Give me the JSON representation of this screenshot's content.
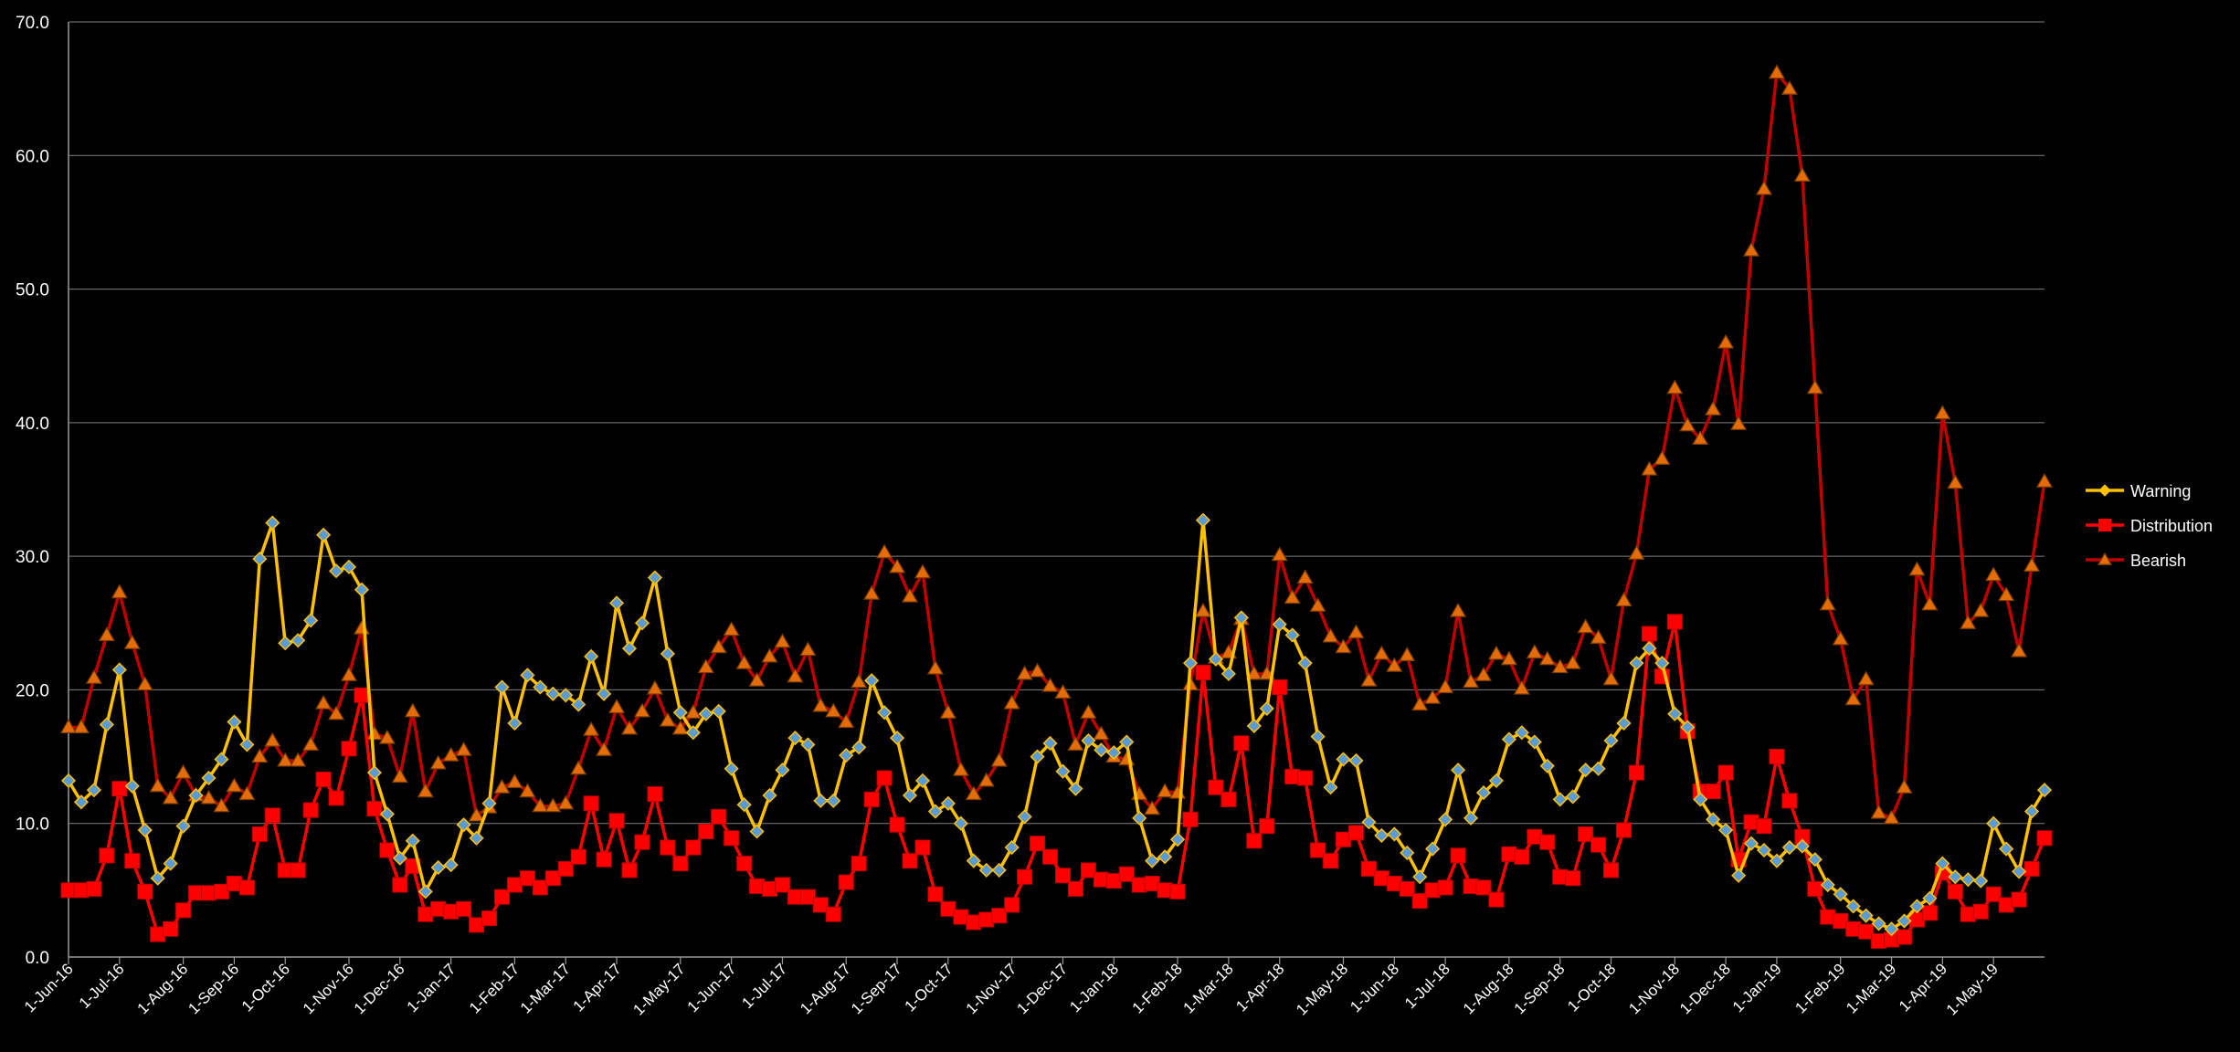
{
  "chart_data": {
    "type": "line",
    "title": "",
    "xlabel": "",
    "ylabel": "",
    "ylim": [
      0,
      70
    ],
    "yticks": [
      "0.0",
      "10.0",
      "20.0",
      "30.0",
      "40.0",
      "50.0",
      "60.0",
      "70.0"
    ],
    "grid": "horizontal",
    "legend": "right",
    "background": "#000000",
    "x_tick_labels": [
      "1-Jun-16",
      "1-Jul-16",
      "1-Aug-16",
      "1-Sep-16",
      "1-Oct-16",
      "1-Nov-16",
      "1-Dec-16",
      "1-Jan-17",
      "1-Feb-17",
      "1-Mar-17",
      "1-Apr-17",
      "1-May-17",
      "1-Jun-17",
      "1-Jul-17",
      "1-Aug-17",
      "1-Sep-17",
      "1-Oct-17",
      "1-Nov-17",
      "1-Dec-17",
      "1-Jan-18",
      "1-Feb-18",
      "1-Mar-18",
      "1-Apr-18",
      "1-May-18",
      "1-Jun-18",
      "1-Jul-18",
      "1-Aug-18",
      "1-Sep-18",
      "1-Oct-18",
      "1-Nov-18",
      "1-Dec-18",
      "1-Jan-19",
      "1-Feb-19",
      "1-Mar-19",
      "1-Apr-19",
      "1-May-19"
    ],
    "series": [
      {
        "name": "Warning",
        "color": "#FFC000",
        "marker": "diamond",
        "marker_fill": "#5B9BD5",
        "values": [
          13.2,
          11.6,
          12.5,
          17.4,
          21.5,
          12.8,
          9.5,
          5.9,
          7.0,
          9.8,
          12.1,
          13.4,
          14.8,
          17.6,
          15.9,
          29.8,
          32.5,
          23.5,
          23.7,
          25.2,
          31.6,
          28.9,
          29.2,
          27.5,
          13.8,
          10.7,
          7.4,
          8.7,
          4.9,
          6.7,
          6.9,
          9.9,
          8.9,
          11.5,
          20.2,
          17.5,
          21.1,
          20.2,
          19.7,
          19.6,
          18.9,
          22.5,
          19.7,
          26.5,
          23.1,
          25.0,
          28.4,
          22.7,
          18.3,
          16.8,
          18.2,
          18.4,
          14.1,
          11.4,
          9.4,
          12.1,
          14.0,
          16.4,
          15.9,
          11.7,
          11.7,
          15.1,
          15.7,
          20.7,
          18.3,
          16.4,
          12.1,
          13.2,
          10.9,
          11.5,
          10.0,
          7.2,
          6.5,
          6.5,
          8.2,
          10.5,
          15.0,
          16.0,
          13.9,
          12.6,
          16.2,
          15.5,
          15.3,
          16.1,
          10.4,
          7.2,
          7.5,
          8.8,
          22.0,
          32.7,
          22.3,
          21.2,
          25.4,
          17.3,
          18.6,
          24.9,
          24.1,
          22.0,
          16.5,
          12.7,
          14.8,
          14.7,
          10.1,
          9.1,
          9.2,
          7.8,
          6.0,
          8.1,
          10.3,
          14.0,
          10.4,
          12.3,
          13.2,
          16.3,
          16.8,
          16.1,
          14.3,
          11.8,
          12.0,
          14.0,
          14.1,
          16.2,
          17.5,
          22.0,
          23.1,
          22.0,
          18.2,
          17.2,
          11.8,
          10.3,
          9.5,
          6.1,
          8.5,
          8.0,
          7.2,
          8.2,
          8.3,
          7.3,
          5.4,
          4.7,
          3.8,
          3.1,
          2.5,
          2.1,
          2.7,
          3.8,
          4.4,
          7.0,
          6.0,
          5.8,
          5.7,
          10.0,
          8.1,
          6.4,
          10.9,
          12.5
        ]
      },
      {
        "name": "Distribution",
        "color": "#FF0000",
        "marker": "square",
        "marker_fill": "#FF0000",
        "values": [
          5.0,
          5.0,
          5.1,
          7.6,
          12.6,
          7.2,
          4.9,
          1.7,
          2.1,
          3.5,
          4.8,
          4.8,
          4.9,
          5.5,
          5.2,
          9.2,
          10.6,
          6.5,
          6.5,
          11.0,
          13.3,
          11.9,
          15.6,
          19.6,
          11.1,
          8.0,
          5.4,
          6.8,
          3.2,
          3.6,
          3.4,
          3.6,
          2.4,
          2.9,
          4.5,
          5.4,
          5.9,
          5.2,
          5.9,
          6.6,
          7.5,
          11.5,
          7.3,
          10.2,
          6.5,
          8.6,
          12.2,
          8.2,
          7.0,
          8.2,
          9.4,
          10.5,
          8.9,
          7.0,
          5.3,
          5.1,
          5.4,
          4.5,
          4.5,
          3.9,
          3.2,
          5.6,
          7.0,
          11.8,
          13.4,
          9.9,
          7.2,
          8.2,
          4.7,
          3.6,
          3.0,
          2.6,
          2.8,
          3.1,
          3.9,
          6.0,
          8.5,
          7.5,
          6.1,
          5.1,
          6.5,
          5.8,
          5.7,
          6.2,
          5.4,
          5.5,
          5.0,
          4.9,
          10.3,
          21.3,
          12.7,
          11.8,
          16.0,
          8.7,
          9.8,
          20.2,
          13.5,
          13.4,
          8.0,
          7.2,
          8.8,
          9.3,
          6.6,
          5.9,
          5.5,
          5.1,
          4.2,
          5.0,
          5.2,
          7.6,
          5.3,
          5.2,
          4.3,
          7.7,
          7.5,
          9.0,
          8.6,
          6.0,
          5.9,
          9.2,
          8.4,
          6.5,
          9.5,
          13.8,
          24.2,
          21.0,
          25.1,
          16.9,
          12.4,
          12.4,
          13.8,
          7.3,
          10.1,
          9.8,
          15.0,
          11.7,
          9.0,
          5.1,
          3.0,
          2.7,
          2.1,
          1.9,
          1.2,
          1.3,
          1.5,
          2.8,
          3.3,
          6.3,
          4.9,
          3.2,
          3.4,
          4.7,
          3.9,
          4.3,
          6.6,
          8.9
        ]
      },
      {
        "name": "Bearish",
        "color": "#C00000",
        "marker": "triangle",
        "marker_fill": "#E46C0A",
        "values": [
          17.2,
          17.2,
          20.9,
          24.1,
          27.3,
          23.5,
          20.4,
          12.8,
          11.9,
          13.8,
          12.1,
          11.9,
          11.3,
          12.8,
          12.2,
          15.0,
          16.2,
          14.7,
          14.7,
          15.9,
          19.0,
          18.2,
          21.1,
          24.6,
          16.7,
          16.4,
          13.5,
          18.4,
          12.4,
          14.5,
          15.1,
          15.5,
          10.6,
          11.2,
          12.7,
          13.1,
          12.4,
          11.3,
          11.3,
          11.5,
          14.1,
          17.0,
          15.5,
          18.7,
          17.1,
          18.4,
          20.1,
          17.7,
          17.1,
          18.3,
          21.7,
          23.2,
          24.5,
          22.0,
          20.7,
          22.5,
          23.6,
          21.0,
          23.0,
          18.8,
          18.4,
          17.6,
          20.6,
          27.2,
          30.3,
          29.2,
          27.0,
          28.8,
          21.6,
          18.3,
          14.0,
          12.2,
          13.2,
          14.7,
          19.0,
          21.2,
          21.4,
          20.3,
          19.8,
          15.9,
          18.3,
          16.7,
          15.0,
          14.8,
          12.2,
          11.1,
          12.4,
          12.3,
          20.4,
          25.9,
          22.4,
          22.8,
          25.3,
          21.2,
          21.2,
          30.1,
          26.9,
          28.4,
          26.3,
          24.0,
          23.2,
          24.3,
          20.7,
          22.7,
          21.8,
          22.6,
          18.9,
          19.4,
          20.2,
          25.9,
          20.6,
          21.1,
          22.7,
          22.3,
          20.1,
          22.8,
          22.3,
          21.7,
          22.0,
          24.7,
          23.9,
          20.8,
          26.7,
          30.2,
          36.5,
          37.3,
          42.6,
          39.8,
          38.8,
          41.0,
          46.0,
          39.9,
          52.9,
          57.5,
          66.2,
          65.0,
          58.5,
          42.6,
          26.4,
          23.8,
          19.3,
          20.8,
          10.8,
          10.4,
          12.7,
          29.0,
          26.4,
          40.7,
          35.5,
          25.0,
          25.9,
          28.6,
          27.1,
          22.9,
          29.3,
          35.6
        ]
      }
    ]
  }
}
